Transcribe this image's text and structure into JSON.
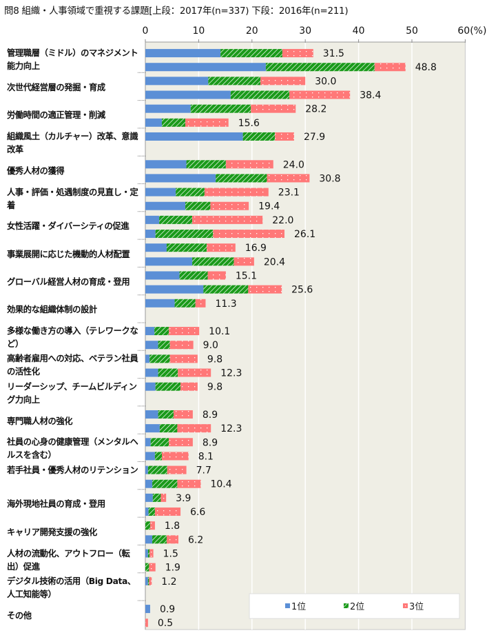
{
  "chart_data": {
    "type": "bar",
    "orientation": "horizontal",
    "stacked": true,
    "title": "問8 組織・人事領域で重視する課題[上段：2017年(n=337) 下段：2016年(n=211)",
    "xlim": [
      0,
      60
    ],
    "x_ticks": [
      "0",
      "10",
      "20",
      "30",
      "40",
      "50",
      "60(%)"
    ],
    "x_tick_values": [
      0,
      10,
      20,
      30,
      40,
      50,
      60
    ],
    "grid": true,
    "legend_position": "bottom-right",
    "series": [
      {
        "name": "1位",
        "color": "#5b8fd6"
      },
      {
        "name": "2位",
        "color": "#1a9a1a"
      },
      {
        "name": "3位",
        "color": "#ff7878"
      }
    ],
    "categories": [
      {
        "label": "管理職層（ミドル）のマネジメント能力向上",
        "bars": [
          {
            "values": [
              14.1,
              11.6,
              5.8
            ],
            "total": "31.5"
          },
          {
            "values": [
              22.6,
              20.4,
              5.8
            ],
            "total": "48.8"
          }
        ]
      },
      {
        "label": "次世代経営層の発掘・育成",
        "bars": [
          {
            "values": [
              11.8,
              9.8,
              8.4
            ],
            "total": "30.0"
          },
          {
            "values": [
              16.0,
              11.0,
              11.4
            ],
            "total": "38.4"
          }
        ]
      },
      {
        "label": "労働時間の適正管理・削減",
        "bars": [
          {
            "values": [
              8.5,
              11.3,
              8.4
            ],
            "total": "28.2"
          },
          {
            "values": [
              3.1,
              4.4,
              8.1
            ],
            "total": "15.6"
          }
        ]
      },
      {
        "label": "組織風土（カルチャー）改革、意識改革",
        "bars": [
          {
            "values": [
              18.3,
              6.0,
              3.6
            ],
            "total": "27.9"
          }
        ]
      },
      {
        "label": "優秀人材の獲得",
        "bars": [
          {
            "values": [
              7.7,
              7.4,
              8.9
            ],
            "total": "24.0"
          },
          {
            "values": [
              13.2,
              9.6,
              8.0
            ],
            "total": "30.8"
          }
        ]
      },
      {
        "label": "人事・評価・処遇制度の見直し・定着",
        "bars": [
          {
            "values": [
              5.7,
              5.4,
              12.0
            ],
            "total": "23.1"
          },
          {
            "values": [
              7.5,
              4.7,
              7.2
            ],
            "total": "19.4"
          }
        ]
      },
      {
        "label": "女性活躍・ダイバーシティの促進",
        "bars": [
          {
            "values": [
              2.6,
              6.2,
              13.2
            ],
            "total": "22.0"
          },
          {
            "values": [
              1.9,
              10.8,
              13.4
            ],
            "total": "26.1"
          }
        ]
      },
      {
        "label": "事業展開に応じた機動的人材配置",
        "bars": [
          {
            "values": [
              4.0,
              7.5,
              5.4
            ],
            "total": "16.9"
          },
          {
            "values": [
              8.8,
              7.8,
              3.8
            ],
            "total": "20.4"
          }
        ]
      },
      {
        "label": "グローバル経営人材の育成・登用",
        "bars": [
          {
            "values": [
              6.4,
              5.3,
              3.4
            ],
            "total": "15.1"
          },
          {
            "values": [
              10.9,
              8.4,
              6.3
            ],
            "total": "25.6"
          }
        ]
      },
      {
        "label": "効果的な組織体制の設計",
        "bars": [
          {
            "values": [
              5.5,
              3.9,
              1.9
            ],
            "total": "11.3"
          }
        ]
      },
      {
        "label": "多様な働き方の導入（テレワークなど）",
        "bars": [
          {
            "values": [
              1.7,
              2.7,
              5.7
            ],
            "total": "10.1"
          },
          {
            "values": [
              2.4,
              2.2,
              4.4
            ],
            "total": "9.0"
          }
        ]
      },
      {
        "label": "高齢者雇用への対応、ベテラン社員の活性化",
        "bars": [
          {
            "values": [
              0.8,
              3.8,
              5.2
            ],
            "total": "9.8"
          },
          {
            "values": [
              2.4,
              3.7,
              6.2
            ],
            "total": "12.3"
          }
        ]
      },
      {
        "label": "リーダーシップ、チームビルディング力向上",
        "bars": [
          {
            "values": [
              1.9,
              4.7,
              3.2
            ],
            "total": "9.8"
          }
        ]
      },
      {
        "label": "専門職人材の強化",
        "bars": [
          {
            "values": [
              2.4,
              2.9,
              3.6
            ],
            "total": "8.9"
          },
          {
            "values": [
              2.7,
              3.3,
              6.3
            ],
            "total": "12.3"
          }
        ]
      },
      {
        "label": "社員の心身の健康管理（メンタルヘルスを含む）",
        "bars": [
          {
            "values": [
              1.0,
              3.4,
              4.5
            ],
            "total": "8.9"
          },
          {
            "values": [
              1.8,
              1.3,
              5.0
            ],
            "total": "8.1"
          }
        ]
      },
      {
        "label": "若手社員・優秀人材のリテンション",
        "bars": [
          {
            "values": [
              0.5,
              3.6,
              3.6
            ],
            "total": "7.7"
          },
          {
            "values": [
              1.3,
              4.7,
              4.4
            ],
            "total": "10.4"
          }
        ]
      },
      {
        "label": "海外現地社員の育成・登用",
        "bars": [
          {
            "values": [
              1.4,
              1.5,
              1.0
            ],
            "total": "3.9"
          },
          {
            "values": [
              0.6,
              1.2,
              4.8
            ],
            "total": "6.6"
          }
        ]
      },
      {
        "label": "キャリア開発支援の強化",
        "bars": [
          {
            "values": [
              0.0,
              0.9,
              0.9
            ],
            "total": "1.8"
          },
          {
            "values": [
              1.3,
              2.7,
              2.2
            ],
            "total": "6.2"
          }
        ]
      },
      {
        "label": "人材の流動化、アウトフロー（転出）促進",
        "bars": [
          {
            "values": [
              0.5,
              0.3,
              0.7
            ],
            "total": "1.5"
          },
          {
            "values": [
              0.0,
              0.7,
              1.2
            ],
            "total": "1.9"
          }
        ]
      },
      {
        "label": "デジタル技術の活用（Big Data、人工知能等）",
        "bars": [
          {
            "values": [
              0.5,
              0.2,
              0.5
            ],
            "total": "1.2"
          }
        ]
      },
      {
        "label": "その他",
        "bars": [
          {
            "values": [
              0.9,
              0,
              0
            ],
            "total": "0.9"
          },
          {
            "values": [
              0,
              0,
              0.5
            ],
            "total": "0.5"
          }
        ]
      }
    ]
  }
}
